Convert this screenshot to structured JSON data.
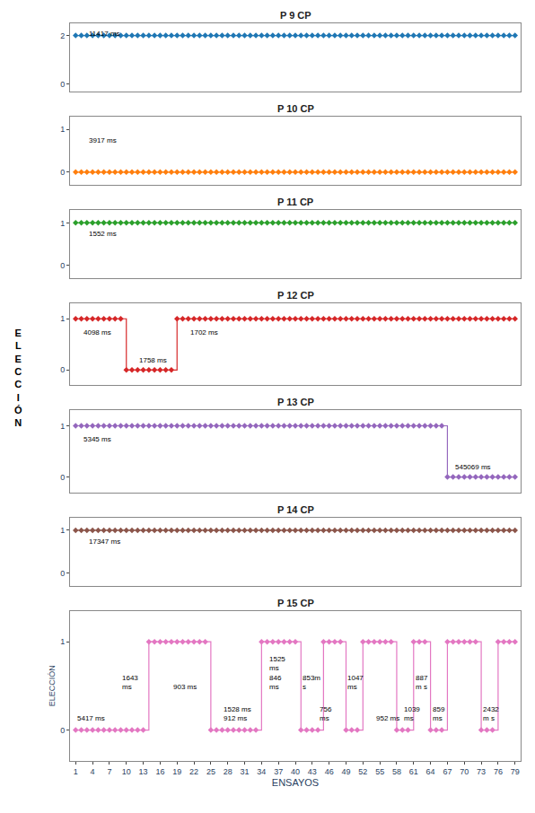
{
  "chart_data": [
    {
      "type": "line",
      "title": "P 9 CP",
      "x": [
        1,
        2,
        3,
        4,
        5,
        6,
        7,
        8,
        9,
        10,
        11,
        12,
        13,
        14,
        15,
        16,
        17,
        18,
        19,
        20,
        21,
        22,
        23,
        24,
        25,
        26,
        27,
        28,
        29,
        30,
        31,
        32,
        33,
        34,
        35,
        36,
        37,
        38,
        39,
        40,
        41,
        42,
        43,
        44,
        45,
        46,
        47,
        48,
        49,
        50,
        51,
        52,
        53,
        54,
        55,
        56,
        57,
        58,
        59,
        60,
        61,
        62,
        63,
        64,
        65,
        66,
        67,
        68,
        69,
        70,
        71,
        72,
        73,
        74,
        75,
        76,
        77,
        78,
        79
      ],
      "values": [
        2,
        2,
        2,
        2,
        2,
        2,
        2,
        2,
        2,
        2,
        2,
        2,
        2,
        2,
        2,
        2,
        2,
        2,
        2,
        2,
        2,
        2,
        2,
        2,
        2,
        2,
        2,
        2,
        2,
        2,
        2,
        2,
        2,
        2,
        2,
        2,
        2,
        2,
        2,
        2,
        2,
        2,
        2,
        2,
        2,
        2,
        2,
        2,
        2,
        2,
        2,
        2,
        2,
        2,
        2,
        2,
        2,
        2,
        2,
        2,
        2,
        2,
        2,
        2,
        2,
        2,
        2,
        2,
        2,
        2,
        2,
        2,
        2,
        2,
        2,
        2,
        2,
        2,
        2
      ],
      "marker": "diamond",
      "xlim": [
        0,
        80
      ],
      "ylim": [
        -0.3,
        2.5
      ],
      "yticks": [
        0,
        2
      ],
      "grid": false,
      "tick_labels": "y",
      "annotations": [
        {
          "x": 3,
          "y": 1.85,
          "text": "11417 ms"
        }
      ]
    },
    {
      "type": "line",
      "title": "P 10 CP",
      "x": [
        1,
        2,
        3,
        4,
        5,
        6,
        7,
        8,
        9,
        10,
        11,
        12,
        13,
        14,
        15,
        16,
        17,
        18,
        19,
        20,
        21,
        22,
        23,
        24,
        25,
        26,
        27,
        28,
        29,
        30,
        31,
        32,
        33,
        34,
        35,
        36,
        37,
        38,
        39,
        40,
        41,
        42,
        43,
        44,
        45,
        46,
        47,
        48,
        49,
        50,
        51,
        52,
        53,
        54,
        55,
        56,
        57,
        58,
        59,
        60,
        61,
        62,
        63,
        64,
        65,
        66,
        67,
        68,
        69,
        70,
        71,
        72,
        73,
        74,
        75,
        76,
        77,
        78,
        79
      ],
      "values": [
        0,
        0,
        0,
        0,
        0,
        0,
        0,
        0,
        0,
        0,
        0,
        0,
        0,
        0,
        0,
        0,
        0,
        0,
        0,
        0,
        0,
        0,
        0,
        0,
        0,
        0,
        0,
        0,
        0,
        0,
        0,
        0,
        0,
        0,
        0,
        0,
        0,
        0,
        0,
        0,
        0,
        0,
        0,
        0,
        0,
        0,
        0,
        0,
        0,
        0,
        0,
        0,
        0,
        0,
        0,
        0,
        0,
        0,
        0,
        0,
        0,
        0,
        0,
        0,
        0,
        0,
        0,
        0,
        0,
        0,
        0,
        0,
        0,
        0,
        0,
        0,
        0,
        0,
        0
      ],
      "marker": "diamond",
      "xlim": [
        0,
        80
      ],
      "ylim": [
        -0.3,
        1.3
      ],
      "yticks": [
        0,
        1
      ],
      "grid": false,
      "tick_labels": "y",
      "annotations": [
        {
          "x": 3,
          "y": 0.6,
          "text": "3917 ms"
        }
      ]
    },
    {
      "type": "line",
      "title": "P 11 CP",
      "x": [
        1,
        2,
        3,
        4,
        5,
        6,
        7,
        8,
        9,
        10,
        11,
        12,
        13,
        14,
        15,
        16,
        17,
        18,
        19,
        20,
        21,
        22,
        23,
        24,
        25,
        26,
        27,
        28,
        29,
        30,
        31,
        32,
        33,
        34,
        35,
        36,
        37,
        38,
        39,
        40,
        41,
        42,
        43,
        44,
        45,
        46,
        47,
        48,
        49,
        50,
        51,
        52,
        53,
        54,
        55,
        56,
        57,
        58,
        59,
        60,
        61,
        62,
        63,
        64,
        65,
        66,
        67,
        68,
        69,
        70,
        71,
        72,
        73,
        74,
        75,
        76,
        77,
        78,
        79
      ],
      "values": [
        1,
        1,
        1,
        1,
        1,
        1,
        1,
        1,
        1,
        1,
        1,
        1,
        1,
        1,
        1,
        1,
        1,
        1,
        1,
        1,
        1,
        1,
        1,
        1,
        1,
        1,
        1,
        1,
        1,
        1,
        1,
        1,
        1,
        1,
        1,
        1,
        1,
        1,
        1,
        1,
        1,
        1,
        1,
        1,
        1,
        1,
        1,
        1,
        1,
        1,
        1,
        1,
        1,
        1,
        1,
        1,
        1,
        1,
        1,
        1,
        1,
        1,
        1,
        1,
        1,
        1,
        1,
        1,
        1,
        1,
        1,
        1,
        1,
        1,
        1,
        1,
        1,
        1,
        1
      ],
      "marker": "diamond",
      "xlim": [
        0,
        80
      ],
      "ylim": [
        -0.3,
        1.3
      ],
      "yticks": [
        0,
        1
      ],
      "grid": false,
      "tick_labels": "y",
      "annotations": [
        {
          "x": 3,
          "y": 0.6,
          "text": "1552 ms"
        }
      ]
    },
    {
      "type": "step",
      "title": "P 12 CP",
      "x": [
        1,
        2,
        3,
        4,
        5,
        6,
        7,
        8,
        9,
        10,
        11,
        12,
        13,
        14,
        15,
        16,
        17,
        18,
        19,
        20,
        21,
        22,
        23,
        24,
        25,
        26,
        27,
        28,
        29,
        30,
        31,
        32,
        33,
        34,
        35,
        36,
        37,
        38,
        39,
        40,
        41,
        42,
        43,
        44,
        45,
        46,
        47,
        48,
        49,
        50,
        51,
        52,
        53,
        54,
        55,
        56,
        57,
        58,
        59,
        60,
        61,
        62,
        63,
        64,
        65,
        66,
        67,
        68,
        69,
        70,
        71,
        72,
        73,
        74,
        75,
        76,
        77,
        78,
        79
      ],
      "values": [
        1,
        1,
        1,
        1,
        1,
        1,
        1,
        1,
        1,
        0,
        0,
        0,
        0,
        0,
        0,
        0,
        0,
        0,
        1,
        1,
        1,
        1,
        1,
        1,
        1,
        1,
        1,
        1,
        1,
        1,
        1,
        1,
        1,
        1,
        1,
        1,
        1,
        1,
        1,
        1,
        1,
        1,
        1,
        1,
        1,
        1,
        1,
        1,
        1,
        1,
        1,
        1,
        1,
        1,
        1,
        1,
        1,
        1,
        1,
        1,
        1,
        1,
        1,
        1,
        1,
        1,
        1,
        1,
        1,
        1,
        1,
        1,
        1,
        1,
        1,
        1,
        1,
        1,
        1
      ],
      "marker": "diamond",
      "xlim": [
        0,
        80
      ],
      "ylim": [
        -0.3,
        1.3
      ],
      "yticks": [
        0,
        1
      ],
      "grid": false,
      "tick_labels": "y",
      "annotations": [
        {
          "x": 2,
          "y": 0.62,
          "text": "4098 ms"
        },
        {
          "x": 12,
          "y": 0.08,
          "text": "1758 ms"
        },
        {
          "x": 21,
          "y": 0.62,
          "text": "1702 ms"
        }
      ]
    },
    {
      "type": "step",
      "title": "P 13 CP",
      "x": [
        1,
        2,
        3,
        4,
        5,
        6,
        7,
        8,
        9,
        10,
        11,
        12,
        13,
        14,
        15,
        16,
        17,
        18,
        19,
        20,
        21,
        22,
        23,
        24,
        25,
        26,
        27,
        28,
        29,
        30,
        31,
        32,
        33,
        34,
        35,
        36,
        37,
        38,
        39,
        40,
        41,
        42,
        43,
        44,
        45,
        46,
        47,
        48,
        49,
        50,
        51,
        52,
        53,
        54,
        55,
        56,
        57,
        58,
        59,
        60,
        61,
        62,
        63,
        64,
        65,
        66,
        67,
        68,
        69,
        70,
        71,
        72,
        73,
        74,
        75,
        76,
        77,
        78,
        79
      ],
      "values": [
        1,
        1,
        1,
        1,
        1,
        1,
        1,
        1,
        1,
        1,
        1,
        1,
        1,
        1,
        1,
        1,
        1,
        1,
        1,
        1,
        1,
        1,
        1,
        1,
        1,
        1,
        1,
        1,
        1,
        1,
        1,
        1,
        1,
        1,
        1,
        1,
        1,
        1,
        1,
        1,
        1,
        1,
        1,
        1,
        1,
        1,
        1,
        1,
        1,
        1,
        1,
        1,
        1,
        1,
        1,
        1,
        1,
        1,
        1,
        1,
        1,
        1,
        1,
        1,
        1,
        1,
        0,
        0,
        0,
        0,
        0,
        0,
        0,
        0,
        0,
        0,
        0,
        0,
        0
      ],
      "marker": "diamond",
      "xlim": [
        0,
        80
      ],
      "ylim": [
        -0.3,
        1.3
      ],
      "yticks": [
        0,
        1
      ],
      "grid": false,
      "tick_labels": "y",
      "annotations": [
        {
          "x": 2,
          "y": 0.62,
          "text": "5345 ms"
        },
        {
          "x": 68,
          "y": 0.08,
          "text": "545069 ms"
        }
      ]
    },
    {
      "type": "line",
      "title": "P 14 CP",
      "x": [
        1,
        2,
        3,
        4,
        5,
        6,
        7,
        8,
        9,
        10,
        11,
        12,
        13,
        14,
        15,
        16,
        17,
        18,
        19,
        20,
        21,
        22,
        23,
        24,
        25,
        26,
        27,
        28,
        29,
        30,
        31,
        32,
        33,
        34,
        35,
        36,
        37,
        38,
        39,
        40,
        41,
        42,
        43,
        44,
        45,
        46,
        47,
        48,
        49,
        50,
        51,
        52,
        53,
        54,
        55,
        56,
        57,
        58,
        59,
        60,
        61,
        62,
        63,
        64,
        65,
        66,
        67,
        68,
        69,
        70,
        71,
        72,
        73,
        74,
        75,
        76,
        77,
        78,
        79
      ],
      "values": [
        1,
        1,
        1,
        1,
        1,
        1,
        1,
        1,
        1,
        1,
        1,
        1,
        1,
        1,
        1,
        1,
        1,
        1,
        1,
        1,
        1,
        1,
        1,
        1,
        1,
        1,
        1,
        1,
        1,
        1,
        1,
        1,
        1,
        1,
        1,
        1,
        1,
        1,
        1,
        1,
        1,
        1,
        1,
        1,
        1,
        1,
        1,
        1,
        1,
        1,
        1,
        1,
        1,
        1,
        1,
        1,
        1,
        1,
        1,
        1,
        1,
        1,
        1,
        1,
        1,
        1,
        1,
        1,
        1,
        1,
        1,
        1,
        1,
        1,
        1,
        1,
        1,
        1,
        1
      ],
      "marker": "diamond",
      "xlim": [
        0,
        80
      ],
      "ylim": [
        -0.3,
        1.3
      ],
      "yticks": [
        0,
        1
      ],
      "grid": false,
      "tick_labels": "y",
      "annotations": [
        {
          "x": 3,
          "y": 0.6,
          "text": "17347 ms"
        }
      ]
    },
    {
      "type": "step",
      "title": "P 15 CP",
      "x": [
        1,
        2,
        3,
        4,
        5,
        6,
        7,
        8,
        9,
        10,
        11,
        12,
        13,
        14,
        15,
        16,
        17,
        18,
        19,
        20,
        21,
        22,
        23,
        24,
        25,
        26,
        27,
        28,
        29,
        30,
        31,
        32,
        33,
        34,
        35,
        36,
        37,
        38,
        39,
        40,
        41,
        42,
        43,
        44,
        45,
        46,
        47,
        48,
        49,
        50,
        51,
        52,
        53,
        54,
        55,
        56,
        57,
        58,
        59,
        60,
        61,
        62,
        63,
        64,
        65,
        66,
        67,
        68,
        69,
        70,
        71,
        72,
        73,
        74,
        75,
        76,
        77,
        78,
        79
      ],
      "values": [
        0,
        0,
        0,
        0,
        0,
        0,
        0,
        0,
        0,
        0,
        0,
        0,
        0,
        1,
        1,
        1,
        1,
        1,
        1,
        1,
        1,
        1,
        1,
        1,
        0,
        0,
        0,
        0,
        0,
        0,
        0,
        0,
        0,
        1,
        1,
        1,
        1,
        1,
        1,
        1,
        0,
        0,
        0,
        0,
        1,
        1,
        1,
        1,
        0,
        0,
        0,
        1,
        1,
        1,
        1,
        1,
        1,
        0,
        0,
        0,
        1,
        1,
        1,
        0,
        0,
        0,
        1,
        1,
        1,
        1,
        1,
        1,
        0,
        0,
        0,
        1,
        1,
        1,
        1
      ],
      "marker": "diamond",
      "xlim": [
        0,
        80
      ],
      "ylim": [
        -0.35,
        1.35
      ],
      "yticks": [
        0,
        1
      ],
      "grid": false,
      "xticks": [
        1,
        4,
        7,
        10,
        13,
        16,
        19,
        22,
        25,
        28,
        31,
        34,
        37,
        40,
        43,
        46,
        49,
        52,
        55,
        58,
        61,
        64,
        67,
        70,
        73,
        76,
        79
      ],
      "xlabel": "ENSAYOS",
      "ylabel": "ELECCIÓN",
      "annotations": [
        {
          "x": 1,
          "y": 0.07,
          "text": "5417 ms"
        },
        {
          "x": 9,
          "y": 0.42,
          "text": "1643\nms"
        },
        {
          "x": 18,
          "y": 0.42,
          "text": "903 ms"
        },
        {
          "x": 27,
          "y": 0.07,
          "text": "1528 ms\n912 ms"
        },
        {
          "x": 35,
          "y": 0.42,
          "text": "1525\nms\n846\nms"
        },
        {
          "x": 41,
          "y": 0.42,
          "text": "853m\ns"
        },
        {
          "x": 44,
          "y": 0.07,
          "text": "756\nms"
        },
        {
          "x": 49,
          "y": 0.42,
          "text": "1047\nms"
        },
        {
          "x": 54,
          "y": 0.07,
          "text": "952 ms"
        },
        {
          "x": 59,
          "y": 0.07,
          "text": "1039\nms"
        },
        {
          "x": 61,
          "y": 0.42,
          "text": "887\nm s"
        },
        {
          "x": 64,
          "y": 0.07,
          "text": "859\nms"
        },
        {
          "x": 73,
          "y": 0.07,
          "text": "2432\nm s"
        }
      ]
    }
  ],
  "ylabel": "E\nL\nE\nC\nC\nI\nÓ\nN"
}
